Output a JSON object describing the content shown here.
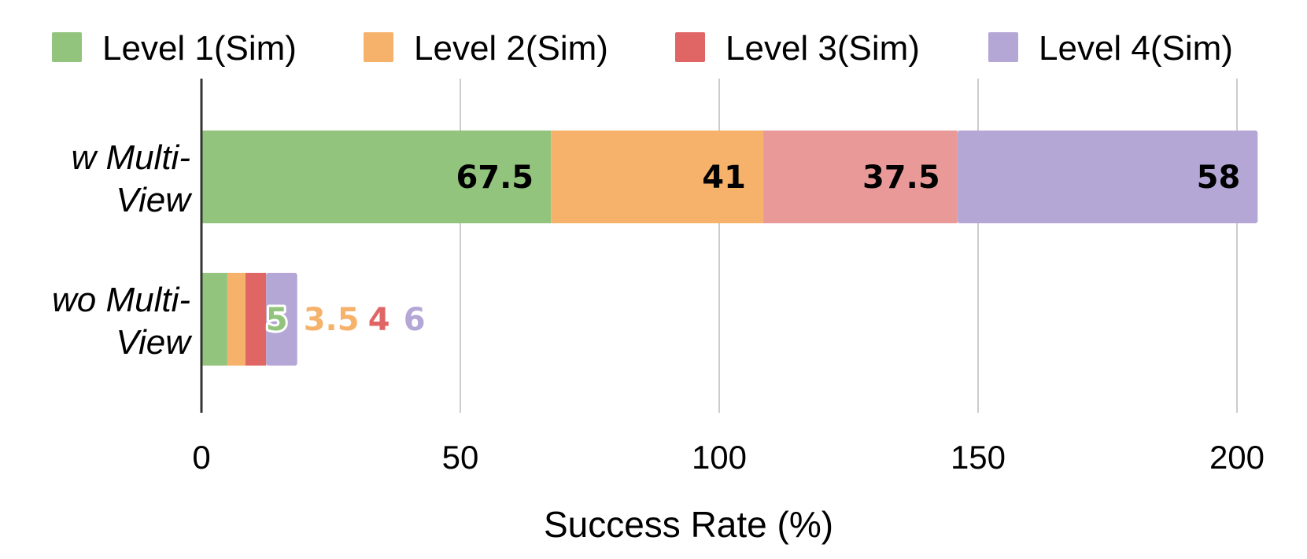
{
  "chart_data": {
    "type": "bar",
    "orientation": "horizontal",
    "stacked": true,
    "categories": [
      "w Multi-View",
      "wo Multi-View"
    ],
    "category_lines": [
      [
        "w Multi-",
        "View"
      ],
      [
        "wo Multi-",
        "View"
      ]
    ],
    "series": [
      {
        "name": "Level 1(Sim)",
        "values": [
          67.5,
          5
        ],
        "color": "#93c47d"
      },
      {
        "name": "Level 2(Sim)",
        "values": [
          41,
          3.5
        ],
        "color": "#f6b26b"
      },
      {
        "name": "Level 3(Sim)",
        "values": [
          37.5,
          4
        ],
        "color": "#e06666"
      },
      {
        "name": "Level 4(Sim)",
        "values": [
          58,
          6
        ],
        "color": "#b4a7d6"
      }
    ],
    "series_colors_by_category": [
      [
        "#93c47d",
        "#f6b26b",
        "#ea9999",
        "#b4a7d6"
      ],
      [
        "#93c47d",
        "#f6b26b",
        "#e06666",
        "#b4a7d6"
      ]
    ],
    "xlabel": "Success Rate (%)",
    "xlim": [
      0,
      200
    ],
    "xticks": [
      0,
      50,
      100,
      150,
      200
    ],
    "grid": true,
    "legend_position": "top",
    "data_labels": [
      [
        "67.5",
        "41",
        "37.5",
        "58"
      ],
      [
        "5",
        "3.5",
        "4",
        "6"
      ]
    ]
  }
}
